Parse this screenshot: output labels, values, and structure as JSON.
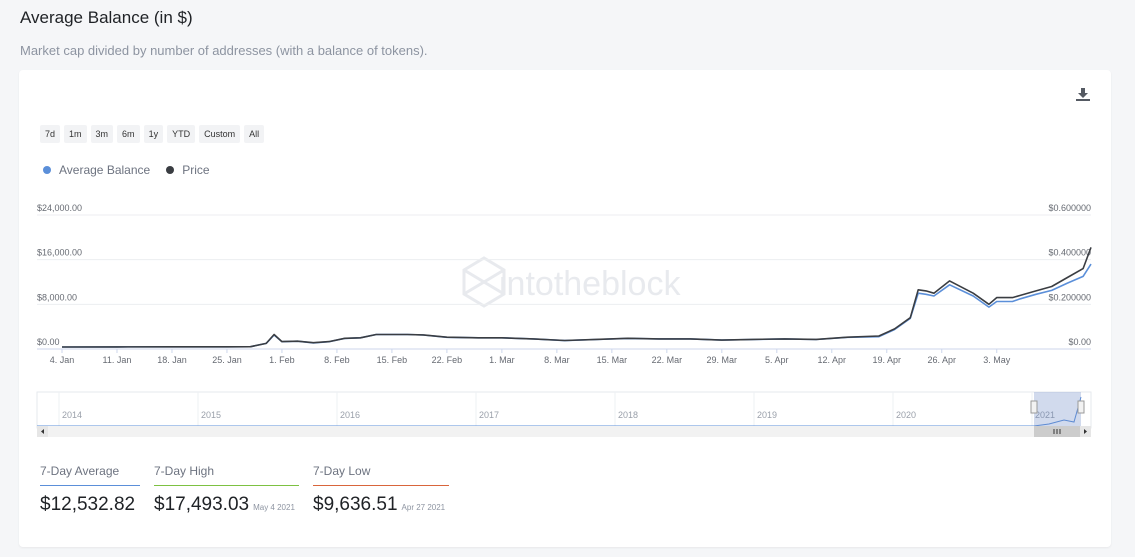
{
  "header": {
    "title": "Average Balance (in $)",
    "subtitle": "Market cap divided by number of addresses (with a balance of tokens)."
  },
  "toolbar": {
    "download_icon": "download-icon",
    "ranges": [
      "7d",
      "1m",
      "3m",
      "6m",
      "1y",
      "YTD",
      "Custom",
      "All"
    ]
  },
  "legend": [
    {
      "label": "Average Balance",
      "color": "#5b8fd9"
    },
    {
      "label": "Price",
      "color": "#3a3d42"
    }
  ],
  "watermark": "intotheblock",
  "chart_data": {
    "type": "line",
    "x_labels": [
      "4. Jan",
      "11. Jan",
      "18. Jan",
      "25. Jan",
      "1. Feb",
      "8. Feb",
      "15. Feb",
      "22. Feb",
      "1. Mar",
      "8. Mar",
      "15. Mar",
      "22. Mar",
      "29. Mar",
      "5. Apr",
      "12. Apr",
      "19. Apr",
      "26. Apr",
      "3. May"
    ],
    "y_left_ticks": [
      "$0.00",
      "$8,000.00",
      "$16,000.00",
      "$24,000.00"
    ],
    "y_right_ticks": [
      "$0.00",
      "$0.200000",
      "$0.400000",
      "$0.600000"
    ],
    "ylim_left": [
      0,
      24000
    ],
    "ylim_right": [
      0,
      0.6
    ],
    "x_range_days": [
      0,
      122
    ],
    "series": [
      {
        "name": "Average Balance",
        "axis": "left",
        "color": "#5b8fd9",
        "points": [
          [
            0,
            350
          ],
          [
            7,
            380
          ],
          [
            14,
            390
          ],
          [
            21,
            400
          ],
          [
            24,
            420
          ],
          [
            26,
            1000
          ],
          [
            27,
            2500
          ],
          [
            28,
            1300
          ],
          [
            30,
            1400
          ],
          [
            32,
            1100
          ],
          [
            34,
            1300
          ],
          [
            36,
            1900
          ],
          [
            38,
            2000
          ],
          [
            40,
            2600
          ],
          [
            44,
            2600
          ],
          [
            46,
            2500
          ],
          [
            49,
            2100
          ],
          [
            53,
            2000
          ],
          [
            56,
            2000
          ],
          [
            60,
            1800
          ],
          [
            64,
            1500
          ],
          [
            68,
            1700
          ],
          [
            72,
            1900
          ],
          [
            76,
            1800
          ],
          [
            80,
            1800
          ],
          [
            84,
            1600
          ],
          [
            88,
            1700
          ],
          [
            92,
            1800
          ],
          [
            96,
            1700
          ],
          [
            100,
            2100
          ],
          [
            104,
            2200
          ],
          [
            106,
            3500
          ],
          [
            108,
            5500
          ],
          [
            109,
            10000
          ],
          [
            110,
            9800
          ],
          [
            111,
            9500
          ],
          [
            113,
            11500
          ],
          [
            116,
            9500
          ],
          [
            118,
            7500
          ],
          [
            119,
            8500
          ],
          [
            121,
            8500
          ],
          [
            122,
            9000
          ],
          [
            124,
            9800
          ],
          [
            126,
            10500
          ],
          [
            128,
            11800
          ],
          [
            130,
            13000
          ],
          [
            131,
            15200
          ]
        ]
      },
      {
        "name": "Price",
        "axis": "right",
        "color": "#3a3d42",
        "points": [
          [
            0,
            0.009
          ],
          [
            7,
            0.0095
          ],
          [
            14,
            0.0098
          ],
          [
            21,
            0.01
          ],
          [
            24,
            0.0105
          ],
          [
            26,
            0.025
          ],
          [
            27,
            0.065
          ],
          [
            28,
            0.033
          ],
          [
            30,
            0.035
          ],
          [
            32,
            0.028
          ],
          [
            34,
            0.033
          ],
          [
            36,
            0.048
          ],
          [
            38,
            0.05
          ],
          [
            40,
            0.065
          ],
          [
            44,
            0.065
          ],
          [
            46,
            0.063
          ],
          [
            49,
            0.053
          ],
          [
            53,
            0.05
          ],
          [
            56,
            0.05
          ],
          [
            60,
            0.045
          ],
          [
            64,
            0.038
          ],
          [
            68,
            0.043
          ],
          [
            72,
            0.048
          ],
          [
            76,
            0.045
          ],
          [
            80,
            0.045
          ],
          [
            84,
            0.04
          ],
          [
            88,
            0.043
          ],
          [
            92,
            0.045
          ],
          [
            96,
            0.043
          ],
          [
            100,
            0.053
          ],
          [
            104,
            0.058
          ],
          [
            106,
            0.09
          ],
          [
            108,
            0.14
          ],
          [
            109,
            0.265
          ],
          [
            110,
            0.26
          ],
          [
            111,
            0.25
          ],
          [
            113,
            0.305
          ],
          [
            116,
            0.25
          ],
          [
            118,
            0.2
          ],
          [
            119,
            0.23
          ],
          [
            121,
            0.23
          ],
          [
            122,
            0.24
          ],
          [
            124,
            0.26
          ],
          [
            126,
            0.28
          ],
          [
            128,
            0.32
          ],
          [
            130,
            0.36
          ],
          [
            131,
            0.455
          ]
        ]
      }
    ],
    "navigator_years": [
      "2014",
      "2015",
      "2016",
      "2017",
      "2018",
      "2019",
      "2020",
      "2021"
    ]
  },
  "stats": [
    {
      "label": "7-Day Average",
      "value": "$12,532.82",
      "date": "",
      "color": "#5b8fd9"
    },
    {
      "label": "7-Day High",
      "value": "$17,493.03",
      "date": "May 4 2021",
      "color": "#7dc142"
    },
    {
      "label": "7-Day Low",
      "value": "$9,636.51",
      "date": "Apr 27 2021",
      "color": "#d9653b"
    }
  ]
}
